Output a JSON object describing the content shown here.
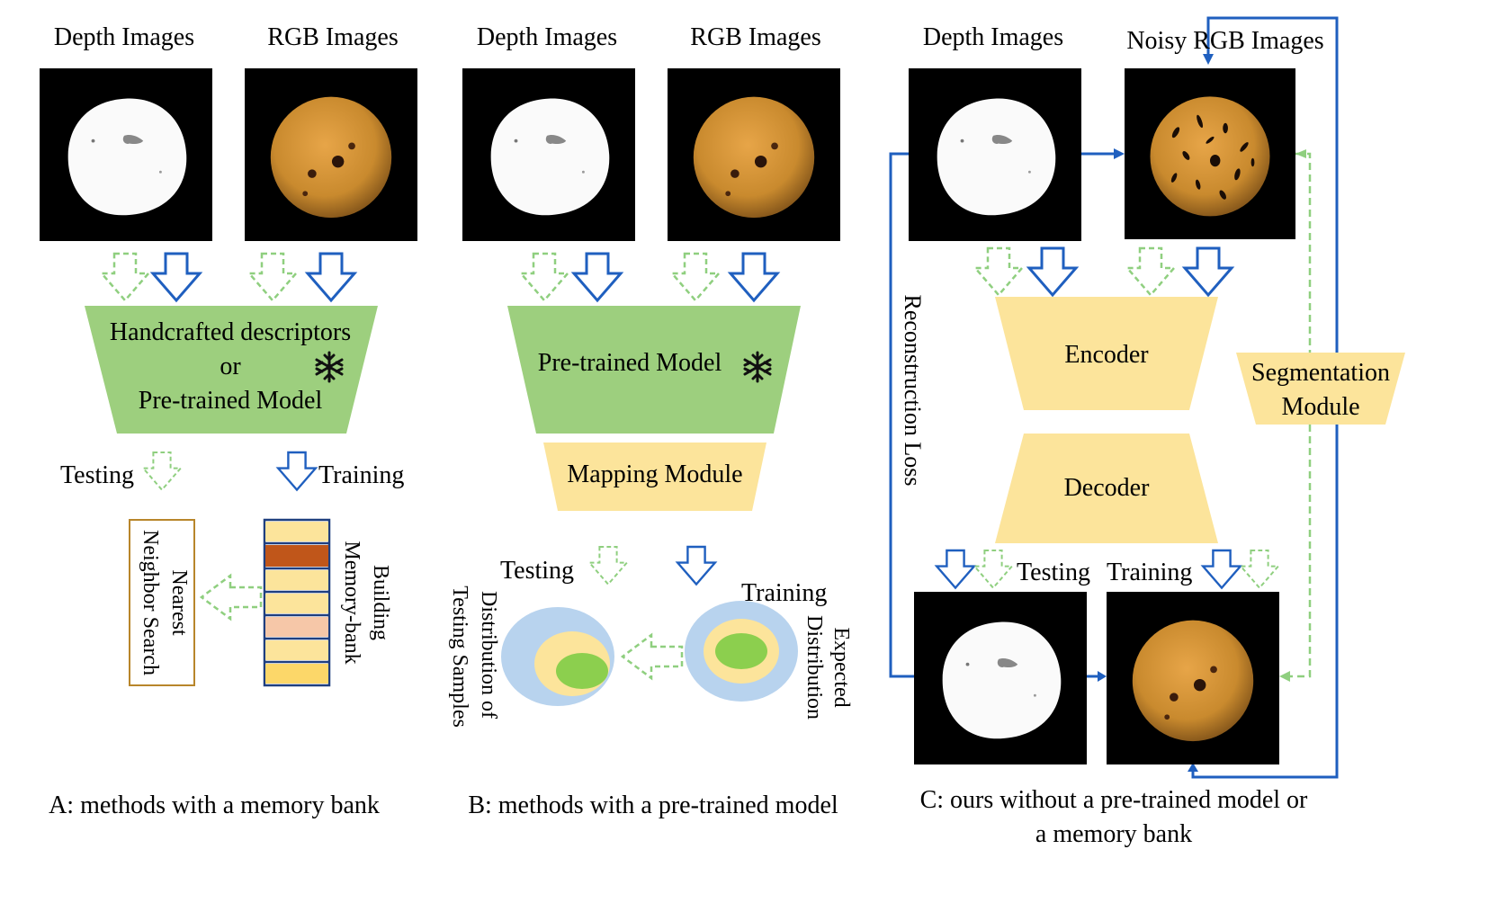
{
  "panel_a": {
    "depth_label": "Depth Images",
    "rgb_label": "RGB Images",
    "extractor_line1": "Handcrafted descriptors",
    "extractor_line2": "or",
    "extractor_line3": "Pre-trained Model",
    "testing_label": "Testing",
    "training_label": "Training",
    "nn_line1": "Nearest",
    "nn_line2": "Neighbor Search",
    "mb_line1": "Building",
    "mb_line2": "Memory-bank",
    "caption": "A: methods with a memory bank"
  },
  "panel_b": {
    "depth_label": "Depth Images",
    "rgb_label": "RGB Images",
    "model_label": "Pre-trained Model",
    "mapping_label": "Mapping Module",
    "testing_label": "Testing",
    "training_label": "Training",
    "test_dist_line1": "Distribution of",
    "test_dist_line2": "Testing Samples",
    "exp_dist_line1": "Expected",
    "exp_dist_line2": "Distribution",
    "caption": "B: methods with a pre-trained model"
  },
  "panel_c": {
    "depth_label": "Depth Images",
    "noisy_label": "Noisy RGB Images",
    "encoder_label": "Encoder",
    "decoder_label": "Decoder",
    "seg_line1": "Segmentation",
    "seg_line2": "Module",
    "recon_label": "Reconstruction Loss",
    "testing_label": "Testing",
    "training_label": "Training",
    "caption_line1": "C: ours without a pre-trained model or",
    "caption_line2": "a memory bank"
  },
  "icons": {
    "frozen": "snowflake-icon",
    "training_arrow": "blue-outline-arrow",
    "testing_arrow": "green-dashed-arrow"
  },
  "colors": {
    "train_blue": "#1f5fbf",
    "test_green": "#8fcf7f",
    "model_green": "#9dcf7e",
    "module_yellow": "#fce49b",
    "cookie_orange": "#c98a2e",
    "memory_dark": "#c0561a",
    "memory_pink": "#f6c7a8",
    "dist_blue": "#b8d3ee",
    "dist_green": "#8ccf4e",
    "nn_border": "#b8862b"
  }
}
